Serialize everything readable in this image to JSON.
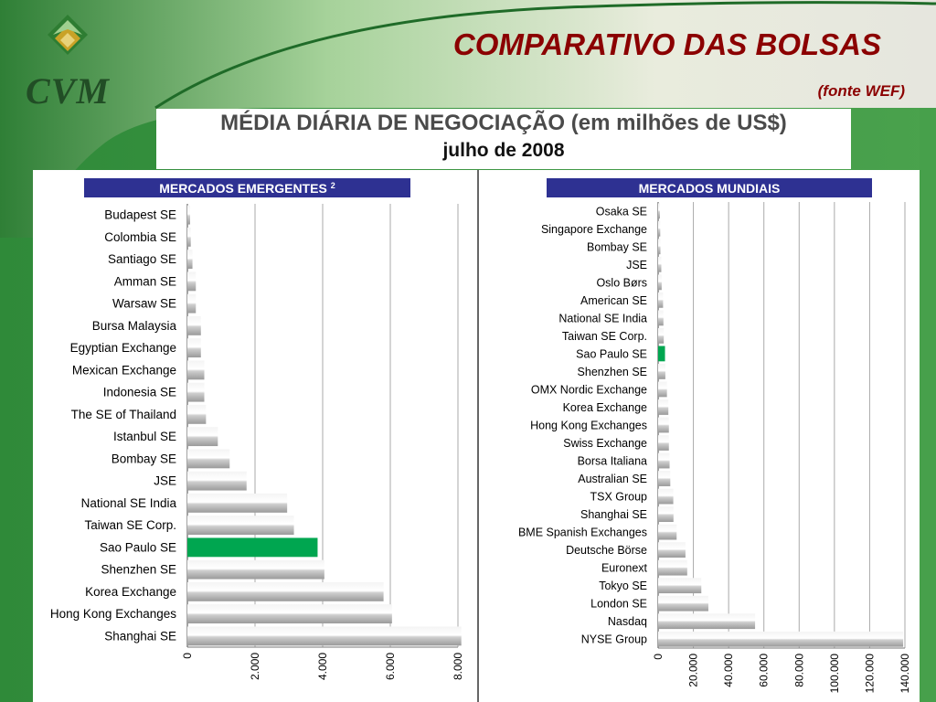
{
  "slide": {
    "title": "COMPARATIVO DAS BOLSAS",
    "source": "(fonte WEF)",
    "logo_text": "CVM",
    "colors": {
      "title": "#8b0000",
      "background_green": "#3a8f3f",
      "panel_header": "#2e3192",
      "highlight_bar": "#00a650"
    }
  },
  "chart_header": {
    "title": "MÉDIA DIÁRIA DE NEGOCIAÇÃO (em milhões de US$)",
    "subtitle": "julho de 2008"
  },
  "chart_data": [
    {
      "type": "bar",
      "orientation": "horizontal",
      "title": "MERCADOS EMERGENTES",
      "title_superscript": "2",
      "categories": [
        "Budapest SE",
        "Colombia SE",
        "Santiago SE",
        "Amman SE",
        "Warsaw SE",
        "Bursa Malaysia",
        "Egyptian Exchange",
        "Mexican Exchange",
        "Indonesia SE",
        "The SE of Thailand",
        "Istanbul SE",
        "Bombay SE",
        "JSE",
        "National SE India",
        "Taiwan SE Corp.",
        "Sao Paulo SE",
        "Shenzhen SE",
        "Korea Exchange",
        "Hong Kong Exchanges",
        "Shanghai SE"
      ],
      "values": [
        80,
        100,
        150,
        250,
        250,
        400,
        400,
        500,
        500,
        550,
        900,
        1250,
        1750,
        2950,
        3150,
        3850,
        4050,
        5800,
        6050,
        8100
      ],
      "highlight": "Sao Paulo SE",
      "xlim": [
        0,
        8000
      ],
      "xticks": [
        "0",
        "2.000",
        "4.000",
        "6.000",
        "8.000"
      ],
      "xtick_values": [
        0,
        2000,
        4000,
        6000,
        8000
      ],
      "grid": "vertical"
    },
    {
      "type": "bar",
      "orientation": "horizontal",
      "title": "MERCADOS MUNDIAIS",
      "categories": [
        "Osaka SE",
        "Singapore Exchange",
        "Bombay SE",
        "JSE",
        "Oslo Børs",
        "American SE",
        "National SE India",
        "Taiwan SE Corp.",
        "Sao Paulo SE",
        "Shenzhen SE",
        "OMX Nordic Exchange",
        "Korea Exchange",
        "Hong Kong Exchanges",
        "Swiss Exchange",
        "Borsa Italiana",
        "Australian SE",
        "TSX Group",
        "Shanghai SE",
        "BME Spanish Exchanges",
        "Deutsche Börse",
        "Euronext",
        "Tokyo SE",
        "London SE",
        "Nasdaq",
        "NYSE Group"
      ],
      "values": [
        1000,
        1200,
        1300,
        1800,
        2000,
        2800,
        3000,
        3200,
        3900,
        4100,
        5000,
        5800,
        6100,
        6100,
        6500,
        6900,
        8600,
        8700,
        10500,
        15500,
        16500,
        24500,
        28500,
        55000,
        139000
      ],
      "highlight": "Sao Paulo SE",
      "xlim": [
        0,
        140000
      ],
      "xticks": [
        "0",
        "20.000",
        "40.000",
        "60.000",
        "80.000",
        "100.000",
        "120.000",
        "140.000"
      ],
      "xtick_values": [
        0,
        20000,
        40000,
        60000,
        80000,
        100000,
        120000,
        140000
      ],
      "grid": "vertical"
    }
  ]
}
